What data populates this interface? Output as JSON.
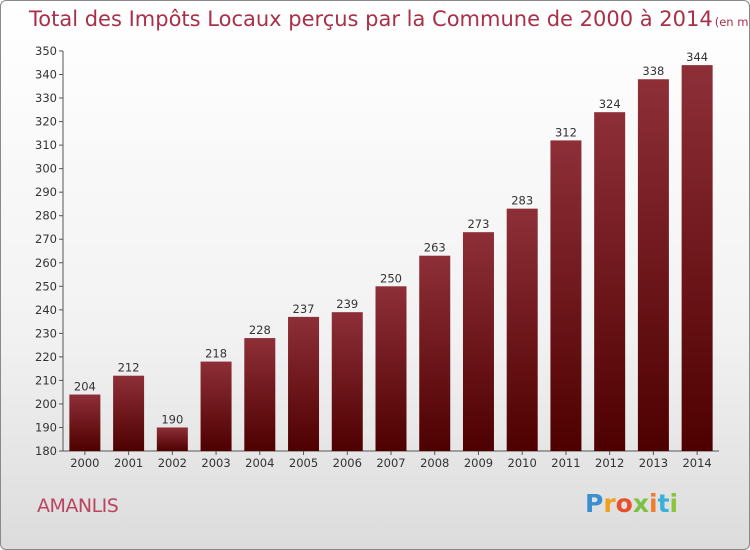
{
  "chart_data": {
    "type": "bar",
    "title": "Total des Impôts Locaux perçus par la Commune de 2000 à 2014",
    "subtitle": "(en milliers d'€)",
    "xlabel": "",
    "ylabel": "",
    "categories": [
      "2000",
      "2001",
      "2002",
      "2003",
      "2004",
      "2005",
      "2006",
      "2007",
      "2008",
      "2009",
      "2010",
      "2011",
      "2012",
      "2013",
      "2014"
    ],
    "values": [
      204,
      212,
      190,
      218,
      228,
      237,
      239,
      250,
      263,
      273,
      283,
      312,
      324,
      338,
      344
    ],
    "ylim": [
      180,
      350
    ],
    "ytick_step": 10,
    "grid": false,
    "bar_color_top": "#8e2f38",
    "bar_color_bottom": "#4e0000"
  },
  "footer": {
    "commune": "AMANLIS",
    "logo_letters": [
      "P",
      "r",
      "o",
      "x",
      "i",
      "t",
      "i"
    ]
  }
}
